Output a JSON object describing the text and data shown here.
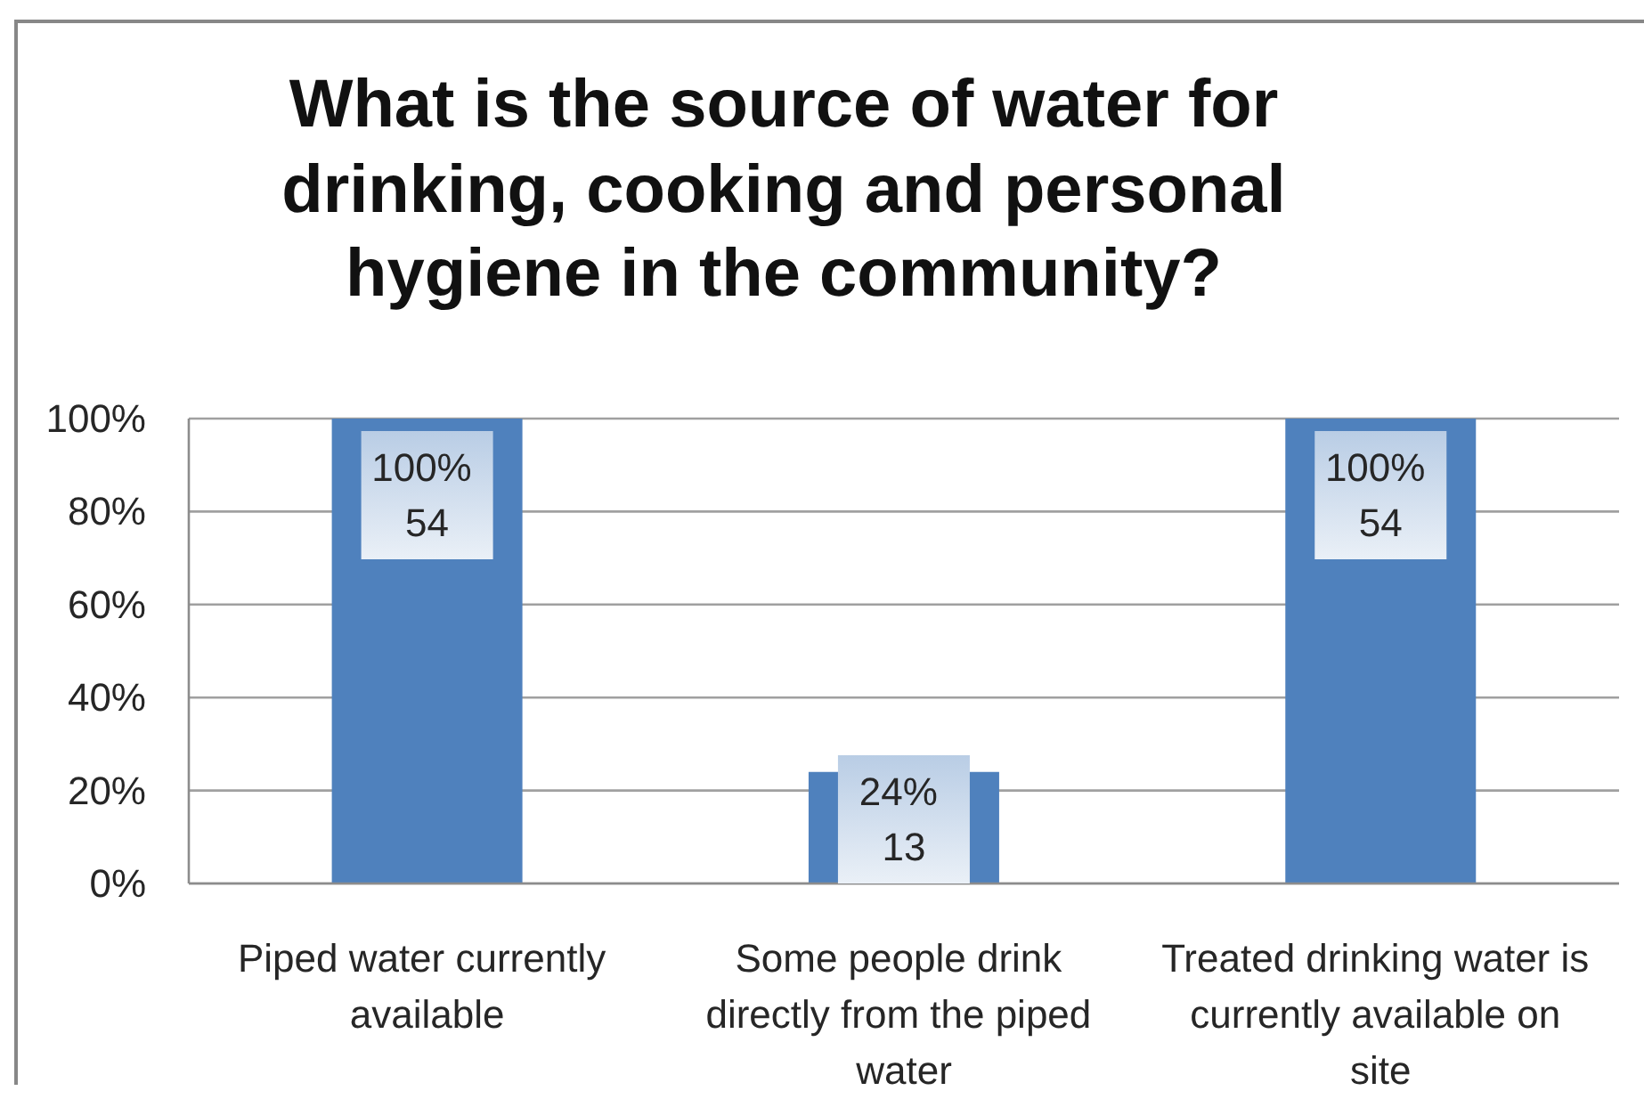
{
  "chart_data": {
    "type": "bar",
    "title": "What is the source of water for drinking, cooking and personal hygiene in the community?",
    "categories": [
      "Piped water currently available",
      "Some people drink directly from the piped water",
      "Treated drinking water is currently available on site"
    ],
    "values": [
      100,
      24,
      100
    ],
    "color": "#4f81bd",
    "value_labels": [
      "100%\n54",
      "24%\n13",
      "100%\n54"
    ],
    "ylim": [
      0,
      100
    ],
    "yticks": [
      {
        "value": 0,
        "label": "0%"
      },
      {
        "value": 20,
        "label": "20%"
      },
      {
        "value": 40,
        "label": "40%"
      },
      {
        "value": 60,
        "label": "60%"
      },
      {
        "value": 80,
        "label": "80%"
      },
      {
        "value": 100,
        "label": "100%"
      }
    ],
    "grid": "y"
  }
}
